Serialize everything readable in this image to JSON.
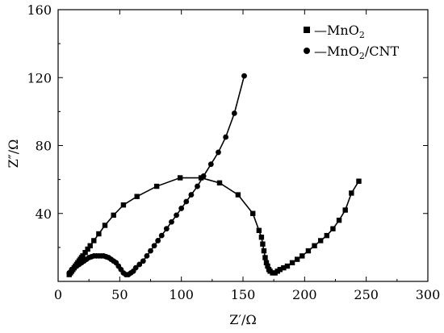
{
  "chart_data": {
    "type": "scatter",
    "title": "",
    "xlabel": "Z′/Ω",
    "ylabel": "Z″/Ω",
    "xlim": [
      0,
      300
    ],
    "ylim": [
      0,
      160
    ],
    "xticks": [
      "0",
      "50",
      "100",
      "150",
      "200",
      "250",
      "300"
    ],
    "yticks": [
      "40",
      "80",
      "120",
      "160"
    ],
    "legend_position": "top-right",
    "grid": false,
    "series": [
      {
        "name": "MnO2",
        "marker": "square",
        "x": [
          9,
          10,
          11,
          12,
          13,
          14,
          15,
          16,
          17,
          18,
          19,
          20,
          22,
          24,
          26,
          29,
          33,
          38,
          45,
          53,
          64,
          80,
          99,
          116,
          131,
          146,
          158,
          163,
          165,
          166,
          167,
          168,
          169,
          170,
          171,
          172,
          174,
          176,
          178,
          180,
          183,
          186,
          190,
          194,
          198,
          203,
          208,
          213,
          218,
          223,
          228,
          233,
          238,
          244
        ],
        "y": [
          4,
          5,
          6,
          7,
          8,
          9,
          10,
          11,
          12,
          13,
          14,
          15,
          17,
          19,
          21,
          24,
          28,
          33,
          39,
          45,
          50,
          56,
          61,
          61,
          58,
          51,
          40,
          30,
          26,
          22,
          18,
          14,
          11,
          9,
          7,
          6,
          5,
          5,
          6,
          7,
          8,
          9,
          11,
          13,
          15,
          18,
          21,
          24,
          27,
          31,
          36,
          42,
          52,
          59
        ]
      },
      {
        "name": "MnO2/CNT",
        "marker": "circle",
        "x": [
          9,
          11,
          13,
          15,
          17,
          19,
          21,
          23,
          25,
          27,
          29,
          31,
          33,
          35,
          37,
          39,
          41,
          43,
          45,
          47,
          49,
          51,
          53,
          55,
          57,
          59,
          61,
          63,
          66,
          69,
          72,
          75,
          78,
          81,
          84,
          88,
          92,
          96,
          100,
          104,
          108,
          113,
          118,
          124,
          130,
          136,
          143,
          151
        ],
        "y": [
          5,
          7,
          8,
          9,
          10,
          11,
          12,
          13,
          14,
          14.5,
          15,
          15,
          15,
          15,
          15,
          14.5,
          14,
          13,
          12,
          11,
          9,
          7,
          5,
          4,
          4,
          5,
          6,
          8,
          10,
          12,
          15,
          18,
          21,
          24,
          27,
          31,
          35,
          39,
          43,
          47,
          51,
          56,
          62,
          69,
          76,
          85,
          99,
          121
        ]
      }
    ]
  },
  "legend": [
    {
      "base": "—MnO",
      "sub": "2",
      "suffix": ""
    },
    {
      "base": "—MnO",
      "sub": "2",
      "suffix": "/CNT"
    }
  ]
}
